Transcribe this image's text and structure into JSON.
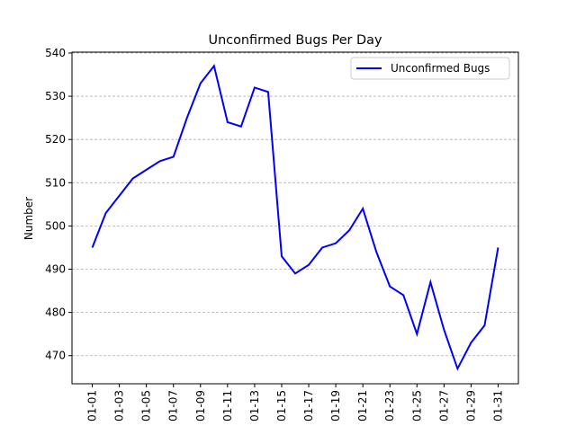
{
  "chart_data": {
    "type": "line",
    "title": "Unconfirmed Bugs Per Day",
    "y_label": "Number",
    "categories": [
      "01-01",
      null,
      "01-03",
      null,
      "01-05",
      null,
      "01-07",
      null,
      "01-09",
      null,
      "01-11",
      null,
      "01-13",
      null,
      "01-15",
      null,
      "01-17",
      null,
      "01-19",
      null,
      "01-21",
      null,
      "01-23",
      null,
      "01-25",
      null,
      "01-27",
      null,
      "01-29",
      null,
      "01-31"
    ],
    "series": [
      {
        "name": "Unconfirmed Bugs",
        "color": "#0000ff",
        "values": [
          495,
          503,
          507,
          511,
          513,
          515,
          516,
          525,
          533,
          537,
          524,
          523,
          532,
          531,
          493,
          489,
          491,
          495,
          496,
          499,
          504,
          494,
          486,
          484,
          475,
          487,
          476,
          467,
          473,
          477,
          495
        ]
      }
    ],
    "ylim": [
      463.5,
      540.2
    ],
    "yticks": [
      470,
      480,
      490,
      500,
      510,
      520,
      530,
      540
    ],
    "grid": true,
    "legend": "upper right"
  }
}
